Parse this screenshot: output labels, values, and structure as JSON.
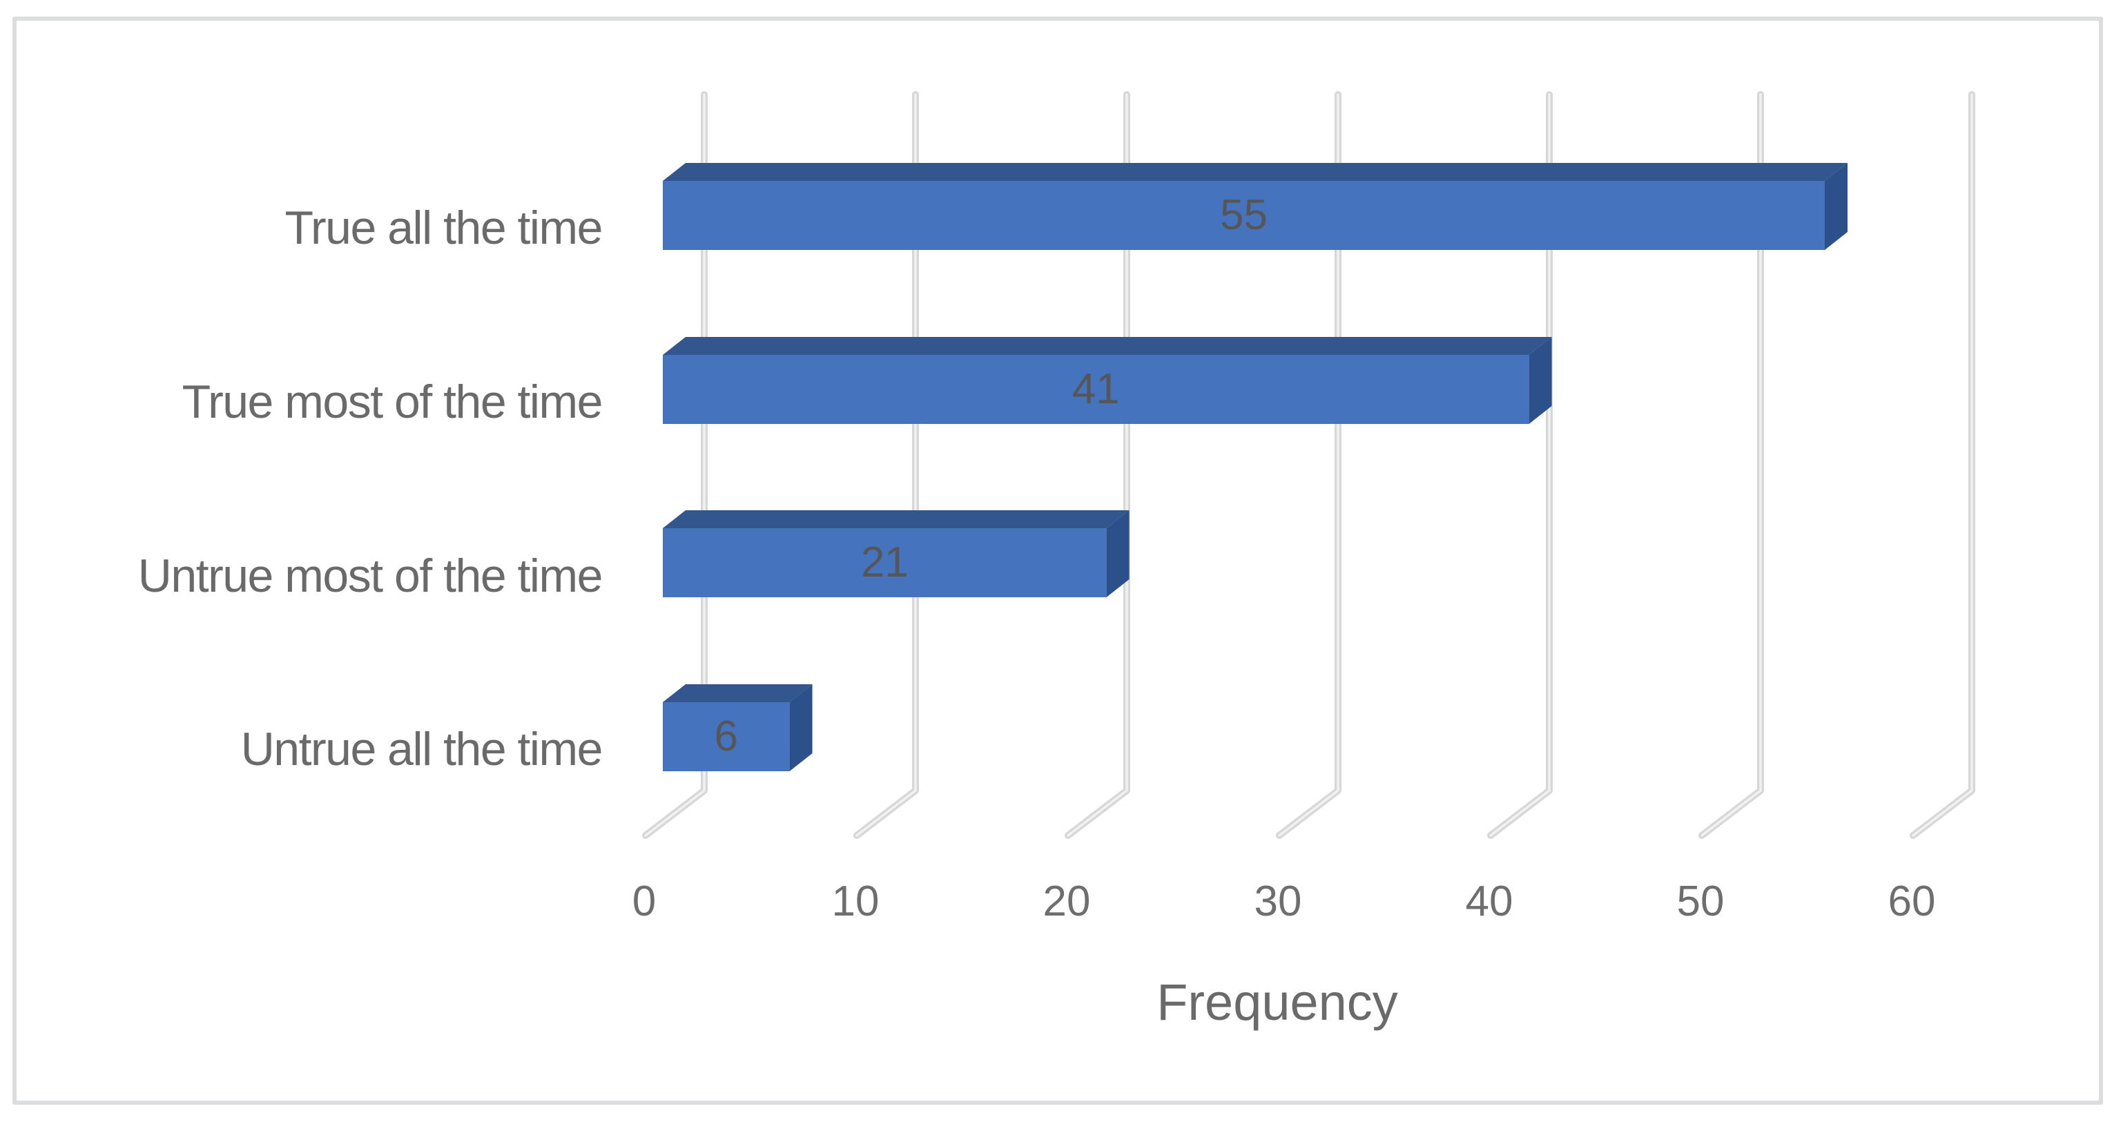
{
  "chart_data": {
    "type": "bar",
    "variant": "3d-horizontal-bar",
    "title": "",
    "categories": [
      "True all the time",
      "True most of the time",
      "Untrue most of the time",
      "Untrue all the time"
    ],
    "values": [
      55,
      41,
      21,
      6
    ],
    "data_labels": [
      "55",
      "41",
      "21",
      "6"
    ],
    "xlabel": "Frequency",
    "ylabel": "",
    "x_ticks": [
      0,
      10,
      20,
      30,
      40,
      50,
      60
    ],
    "xlim": [
      0,
      65
    ],
    "grid": true,
    "legend": "none",
    "colors": {
      "bar_front": "#4573BD",
      "bar_top": "#33568F",
      "bar_side": "#2C5089",
      "gridline": "#D7D7D7",
      "gridline_highlight": "#F1F1F1",
      "category_text": "#6A6A6A",
      "tick_text": "#6E6E6E",
      "data_label_text": "#565656",
      "axis_title_text": "#6A6A6A",
      "frame_border": "#DCDDDF",
      "background": "#FFFFFF"
    }
  }
}
